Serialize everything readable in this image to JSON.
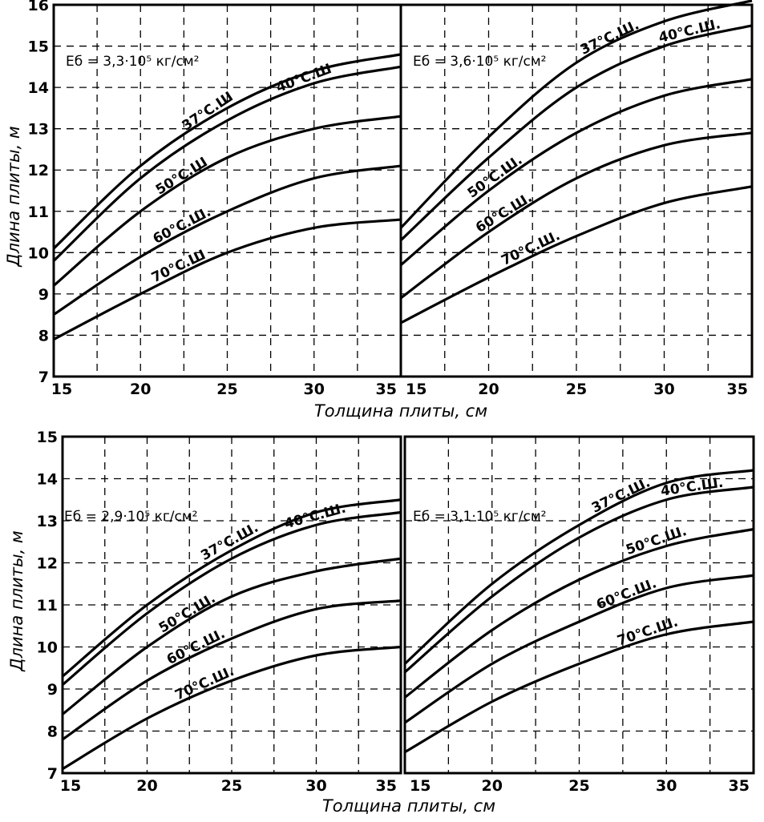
{
  "chart_data": [
    {
      "type": "line",
      "title": "Eб = 3,3·10⁵ кг/см²",
      "xlabel": "Толщина плиты, см",
      "ylabel": "Длина плиты, м",
      "xlim": [
        15,
        35
      ],
      "ylim": [
        7,
        16
      ],
      "xticks": [
        15,
        20,
        25,
        30,
        35
      ],
      "yticks": [
        7,
        8,
        9,
        10,
        11,
        12,
        13,
        14,
        15,
        16
      ],
      "grid": true,
      "x": [
        15,
        20,
        25,
        30,
        35
      ],
      "series": [
        {
          "name": "37°С.Ш",
          "values": [
            10.1,
            12.1,
            13.5,
            14.4,
            14.8
          ]
        },
        {
          "name": "40°С.Ш",
          "values": [
            9.8,
            11.8,
            13.2,
            14.1,
            14.5
          ]
        },
        {
          "name": "50°С.Ш",
          "values": [
            9.2,
            11.0,
            12.3,
            13.0,
            13.3
          ]
        },
        {
          "name": "60°С.Ш.",
          "values": [
            8.5,
            9.9,
            11.0,
            11.8,
            12.1
          ]
        },
        {
          "name": "70°С.Ш",
          "values": [
            7.9,
            9.0,
            10.0,
            10.6,
            10.8
          ]
        }
      ]
    },
    {
      "type": "line",
      "title": "Eб = 3,6·10⁵ кг/см²",
      "xlabel": "Толщина плиты, см",
      "ylabel": "Длина плиты, м",
      "xlim": [
        15,
        35
      ],
      "ylim": [
        7,
        16
      ],
      "xticks": [
        15,
        20,
        25,
        30,
        35
      ],
      "yticks": [],
      "grid": true,
      "x": [
        15,
        20,
        25,
        30,
        35
      ],
      "series": [
        {
          "name": "37°С.Ш.",
          "values": [
            10.6,
            12.8,
            14.6,
            15.6,
            16.1
          ]
        },
        {
          "name": "40°С.Ш.",
          "values": [
            10.3,
            12.3,
            14.0,
            15.0,
            15.5
          ]
        },
        {
          "name": "50°С.Ш.",
          "values": [
            9.7,
            11.5,
            12.9,
            13.8,
            14.2
          ]
        },
        {
          "name": "60°С.Ш.",
          "values": [
            8.9,
            10.5,
            11.8,
            12.6,
            12.9
          ]
        },
        {
          "name": "70°С.Ш.",
          "values": [
            8.3,
            9.4,
            10.4,
            11.2,
            11.6
          ]
        }
      ]
    },
    {
      "type": "line",
      "title": "Eб = 2,9·10⁵ кг/см²",
      "xlabel": "Толщина плиты, см",
      "ylabel": "Длина плиты, м",
      "xlim": [
        15,
        35
      ],
      "ylim": [
        7,
        15
      ],
      "xticks": [
        15,
        20,
        25,
        30,
        35
      ],
      "yticks": [
        7,
        8,
        9,
        10,
        11,
        12,
        13,
        14,
        15
      ],
      "grid": true,
      "x": [
        15,
        20,
        25,
        30,
        35
      ],
      "series": [
        {
          "name": "37°С.Ш.",
          "values": [
            9.3,
            11.0,
            12.3,
            13.2,
            13.5
          ]
        },
        {
          "name": "40°С.Ш.",
          "values": [
            9.1,
            10.8,
            12.1,
            12.9,
            13.2
          ]
        },
        {
          "name": "50°С.Ш.",
          "values": [
            8.4,
            10.0,
            11.2,
            11.8,
            12.1
          ]
        },
        {
          "name": "60°С.Ш.",
          "values": [
            7.8,
            9.2,
            10.2,
            10.9,
            11.1
          ]
        },
        {
          "name": "70°С.Ш.",
          "values": [
            7.1,
            8.3,
            9.2,
            9.8,
            10.0
          ]
        }
      ]
    },
    {
      "type": "line",
      "title": "Eб = 3,1·10⁵ кг/см²",
      "xlabel": "Толщина плиты, см",
      "ylabel": "Длина плиты, м",
      "xlim": [
        15,
        35
      ],
      "ylim": [
        7,
        15
      ],
      "xticks": [
        15,
        20,
        25,
        30,
        35
      ],
      "yticks": [],
      "grid": true,
      "x": [
        15,
        20,
        25,
        30,
        35
      ],
      "series": [
        {
          "name": "37°С.Ш.",
          "values": [
            9.6,
            11.5,
            12.9,
            13.9,
            14.2
          ]
        },
        {
          "name": "40°С.Ш.",
          "values": [
            9.4,
            11.2,
            12.6,
            13.5,
            13.8
          ]
        },
        {
          "name": "50°С.Ш.",
          "values": [
            8.8,
            10.4,
            11.6,
            12.4,
            12.8
          ]
        },
        {
          "name": "60°С.Ш.",
          "values": [
            8.2,
            9.6,
            10.6,
            11.4,
            11.7
          ]
        },
        {
          "name": "70°С.Ш.",
          "values": [
            7.5,
            8.7,
            9.6,
            10.3,
            10.6
          ]
        }
      ]
    }
  ]
}
